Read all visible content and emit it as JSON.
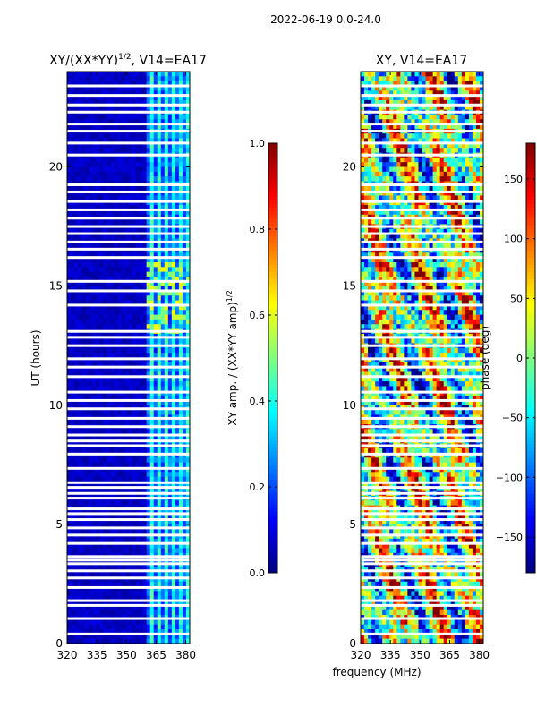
{
  "figure_title": "2022-06-19 0.0-24.0",
  "shared_xlabel": "frequency (MHz)",
  "chart_data": [
    {
      "type": "heatmap",
      "title_main": "XY/(XX*YY)",
      "title_sup": "1/2",
      "title_tail": ", V14=EA17",
      "xlabel": "frequency (MHz)",
      "ylabel": "UT (hours)",
      "xlim": [
        320,
        382
      ],
      "ylim": [
        0,
        24
      ],
      "xticks": [
        320,
        335,
        350,
        365,
        380
      ],
      "yticks": [
        0,
        5,
        10,
        15,
        20
      ],
      "colorbar": {
        "label_main": "XY amp. / (XX*YY amp)",
        "label_sup": "1/2",
        "range": [
          0.0,
          1.0
        ],
        "ticks": [
          "0.0",
          "0.2",
          "0.4",
          "0.6",
          "0.8",
          "1.0"
        ]
      }
    },
    {
      "type": "heatmap",
      "title": "XY, V14=EA17",
      "xlabel": "frequency (MHz)",
      "ylabel": "",
      "xlim": [
        320,
        382
      ],
      "ylim": [
        0,
        24
      ],
      "xticks": [
        320,
        335,
        350,
        365,
        380
      ],
      "yticks": [
        0,
        5,
        10,
        15,
        20
      ],
      "colorbar": {
        "label": "phase (deg)",
        "range": [
          -180,
          180
        ],
        "ticks": [
          "−150",
          "−100",
          "−50",
          "0",
          "50",
          "100",
          "150"
        ]
      }
    }
  ],
  "gap_hours": [
    0.4,
    1.05,
    1.6,
    1.8,
    2.35,
    2.75,
    3.05,
    3.35,
    3.5,
    3.65,
    4.2,
    4.55,
    4.85,
    5.2,
    5.45,
    5.65,
    6.1,
    6.3,
    6.55,
    6.75,
    7.35,
    7.95,
    8.3,
    8.5,
    8.75,
    9.1,
    9.45,
    9.85,
    10.2,
    10.55,
    11.2,
    11.6,
    11.95,
    12.5,
    12.85,
    13.1,
    14.2,
    14.8,
    15.2,
    16.2,
    16.55,
    16.85,
    17.2,
    17.5,
    17.85,
    18.2,
    18.55,
    18.95,
    19.25,
    20.5,
    21.0,
    21.5,
    21.8,
    22.3,
    22.6,
    23.0,
    23.4
  ]
}
